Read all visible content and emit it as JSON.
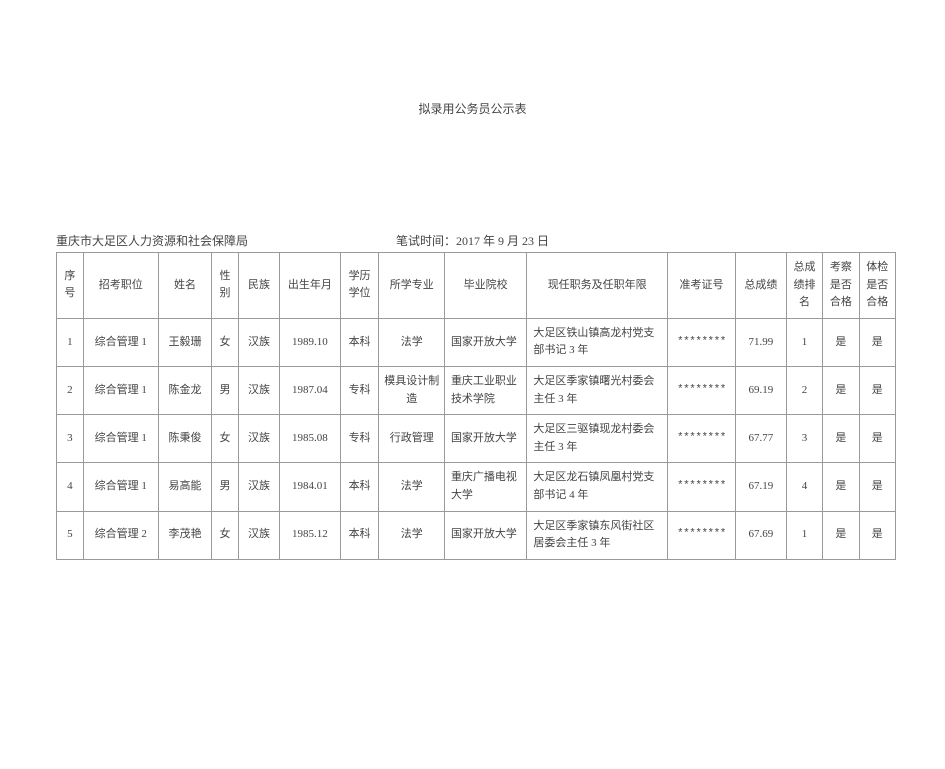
{
  "title": "拟录用公务员公示表",
  "org": "重庆市大足区人力资源和社会保障局",
  "exam_time_label": "笔试时间：2017 年 9 月 23 日",
  "headers": {
    "seq": "序号",
    "position": "招考职位",
    "name": "姓名",
    "gender": "性别",
    "ethnicity": "民族",
    "dob": "出生年月",
    "edu": "学历学位",
    "major": "所学专业",
    "school": "毕业院校",
    "work": "现任职务及任职年限",
    "examno": "准考证号",
    "score": "总成绩",
    "rank": "总成绩排名",
    "inspect": "考察是否合格",
    "phys": "体检是否合格"
  },
  "rows": [
    {
      "seq": "1",
      "position": "综合管理 1",
      "name": "王毅珊",
      "gender": "女",
      "ethnicity": "汉族",
      "dob": "1989.10",
      "edu": "本科",
      "major": "法学",
      "school": "国家开放大学",
      "work": "大足区铁山镇高龙村党支部书记 3 年",
      "examno": "********",
      "score": "71.99",
      "rank": "1",
      "inspect": "是",
      "phys": "是"
    },
    {
      "seq": "2",
      "position": "综合管理 1",
      "name": "陈金龙",
      "gender": "男",
      "ethnicity": "汉族",
      "dob": "1987.04",
      "edu": "专科",
      "major": "模具设计制造",
      "school": "重庆工业职业技术学院",
      "work": "大足区季家镇曙光村委会主任 3 年",
      "examno": "********",
      "score": "69.19",
      "rank": "2",
      "inspect": "是",
      "phys": "是"
    },
    {
      "seq": "3",
      "position": "综合管理 1",
      "name": "陈秉俊",
      "gender": "女",
      "ethnicity": "汉族",
      "dob": "1985.08",
      "edu": "专科",
      "major": "行政管理",
      "school": "国家开放大学",
      "work": "大足区三驱镇现龙村委会主任 3 年",
      "examno": "********",
      "score": "67.77",
      "rank": "3",
      "inspect": "是",
      "phys": "是"
    },
    {
      "seq": "4",
      "position": "综合管理 1",
      "name": "易高能",
      "gender": "男",
      "ethnicity": "汉族",
      "dob": "1984.01",
      "edu": "本科",
      "major": "法学",
      "school": "重庆广播电视大学",
      "work": "大足区龙石镇凤凰村党支部书记 4 年",
      "examno": "********",
      "score": "67.19",
      "rank": "4",
      "inspect": "是",
      "phys": "是"
    },
    {
      "seq": "5",
      "position": "综合管理 2",
      "name": "李茂艳",
      "gender": "女",
      "ethnicity": "汉族",
      "dob": "1985.12",
      "edu": "本科",
      "major": "法学",
      "school": "国家开放大学",
      "work": "大足区季家镇东风街社区居委会主任 3 年",
      "examno": "********",
      "score": "67.69",
      "rank": "1",
      "inspect": "是",
      "phys": "是"
    }
  ]
}
